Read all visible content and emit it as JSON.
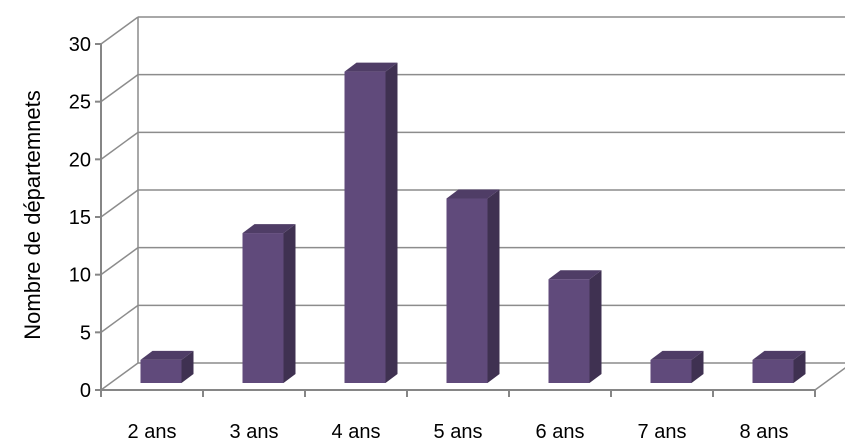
{
  "chart_data": {
    "type": "bar",
    "title": "",
    "xlabel": "",
    "ylabel": "Nombre de départemnets",
    "categories": [
      "2 ans",
      "3 ans",
      "4 ans",
      "5 ans",
      "6 ans",
      "7 ans",
      "8 ans"
    ],
    "values": [
      2,
      13,
      27,
      16,
      9,
      2,
      2
    ],
    "ylim": [
      0,
      30
    ],
    "yticks": [
      "0",
      "5",
      "10",
      "15",
      "20",
      "25",
      "30"
    ],
    "grid": true,
    "three_d": true,
    "colors": {
      "bar_front": "#604a7b",
      "bar_side": "#3f3151",
      "bar_top": "#4f3d66",
      "grid": "#8c8c8c"
    }
  }
}
